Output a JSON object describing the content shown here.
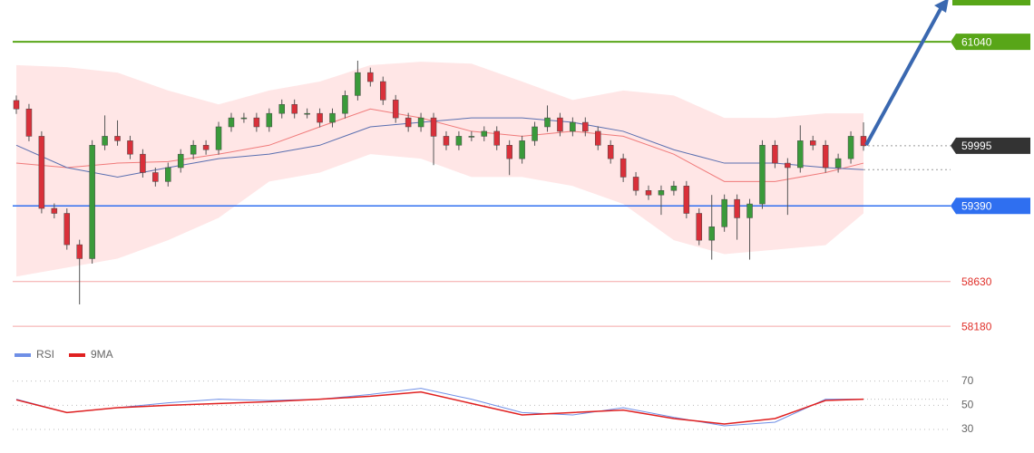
{
  "chart_data": [
    {
      "type": "candlestick",
      "open": [
        60450,
        60365,
        60090,
        59365,
        59315,
        59000,
        58860,
        60000,
        60090,
        60045,
        59910,
        59725,
        59635,
        59775,
        59910,
        60000,
        59955,
        60185,
        60275,
        60275,
        60185,
        60320,
        60410,
        60320,
        60320,
        60230,
        60320,
        60500,
        60730,
        60640,
        60455,
        60275,
        60185,
        60275,
        60090,
        60000,
        60090,
        60090,
        60140,
        60000,
        59865,
        60045,
        60185,
        60275,
        60140,
        60230,
        60140,
        60000,
        59865,
        59680,
        59545,
        59500,
        59545,
        59590,
        59315,
        59045,
        59180,
        59455,
        59270,
        59410,
        60000,
        59820,
        59775,
        60045,
        60000,
        59775,
        59865,
        60090
      ],
      "high": [
        60500,
        60415,
        60140,
        59415,
        59365,
        59050,
        60050,
        60300,
        60250,
        60095,
        59960,
        59775,
        59825,
        59960,
        60050,
        60050,
        60235,
        60325,
        60325,
        60325,
        60370,
        60460,
        60460,
        60370,
        60370,
        60370,
        60550,
        60850,
        60780,
        60690,
        60505,
        60325,
        60325,
        60325,
        60140,
        60140,
        60140,
        60190,
        60190,
        60050,
        60095,
        60235,
        60400,
        60325,
        60280,
        60280,
        60190,
        60050,
        59915,
        59730,
        59595,
        59595,
        59640,
        59640,
        59365,
        59500,
        59505,
        59505,
        59460,
        60050,
        60050,
        59870,
        60200,
        60095,
        60050,
        59915,
        60140,
        60230
      ],
      "low": [
        60315,
        60040,
        59315,
        59265,
        58950,
        58400,
        58810,
        59950,
        59995,
        59860,
        59675,
        59585,
        59585,
        59725,
        59860,
        59905,
        59905,
        60135,
        60225,
        60135,
        60135,
        60270,
        60270,
        60270,
        60180,
        60180,
        60270,
        60450,
        60590,
        60405,
        60225,
        60135,
        60135,
        59800,
        59950,
        59950,
        60040,
        60040,
        59950,
        59700,
        59815,
        59995,
        60135,
        60090,
        60090,
        60090,
        59950,
        59815,
        59630,
        59495,
        59450,
        59300,
        59495,
        59265,
        58995,
        58850,
        59130,
        59050,
        58850,
        59360,
        59770,
        59300,
        59725,
        59950,
        59725,
        59725,
        59815,
        59945
      ],
      "close": [
        60365,
        60090,
        59365,
        59315,
        59000,
        58860,
        60000,
        60090,
        60045,
        59910,
        59725,
        59635,
        59775,
        59910,
        60000,
        59955,
        60185,
        60275,
        60275,
        60185,
        60320,
        60410,
        60320,
        60320,
        60230,
        60320,
        60500,
        60730,
        60640,
        60455,
        60275,
        60185,
        60275,
        60090,
        60000,
        60090,
        60090,
        60140,
        60000,
        59865,
        60045,
        60185,
        60275,
        60140,
        60230,
        60140,
        60000,
        59865,
        59680,
        59545,
        59500,
        59545,
        59590,
        59315,
        59045,
        59180,
        59455,
        59270,
        59410,
        60000,
        59820,
        59775,
        60045,
        60000,
        59775,
        59865,
        60090,
        59995
      ],
      "up_color": "#3a9a3a",
      "down_color": "#d9303a",
      "ylim": [
        58090,
        61460
      ],
      "overlays": {
        "x": [
          0,
          4,
          8,
          12,
          16,
          20,
          24,
          28,
          32,
          36,
          40,
          44,
          48,
          52,
          56,
          60,
          64,
          67
        ],
        "band_upper": [
          60805,
          60785,
          60730,
          60550,
          60410,
          60550,
          60640,
          60805,
          60840,
          60820,
          60640,
          60455,
          60550,
          60500,
          60275,
          60275,
          60320,
          60320
        ],
        "band_lower": [
          58680,
          58770,
          58860,
          59045,
          59270,
          59635,
          59725,
          59910,
          59865,
          59680,
          59680,
          59590,
          59410,
          59045,
          58905,
          58950,
          58995,
          59315
        ],
        "band_color": "#ffd6d6",
        "series": [
          {
            "color": "#f07a7a",
            "values": [
              59820,
              59775,
              59820,
              59835,
              59910,
              60000,
              60185,
              60365,
              60275,
              60140,
              60090,
              60140,
              60090,
              59910,
              59635,
              59635,
              59725,
              59820
            ]
          },
          {
            "color": "#5a6fb0",
            "values": [
              60000,
              59775,
              59680,
              59775,
              59865,
              59910,
              60000,
              60185,
              60230,
              60275,
              60275,
              60230,
              60140,
              59955,
              59820,
              59820,
              59775,
              59755
            ]
          }
        ]
      },
      "levels": [
        {
          "value": 61040,
          "color": "#58a618",
          "style": "box"
        },
        {
          "value": 59995,
          "color": "#333333",
          "style": "box"
        },
        {
          "value": 59390,
          "color": "#2f6ff0",
          "style": "box"
        },
        {
          "value": 58630,
          "color": "#f4a6a6",
          "style": "text"
        },
        {
          "value": 58180,
          "color": "#f4a6a6",
          "style": "text"
        }
      ]
    },
    {
      "type": "line",
      "x": [
        0,
        4,
        8,
        12,
        16,
        20,
        24,
        28,
        32,
        36,
        40,
        44,
        48,
        52,
        56,
        60,
        64,
        67
      ],
      "series": [
        {
          "name": "RSI",
          "color": "#6f8fe6",
          "values": [
            55,
            44,
            48,
            52,
            55,
            54,
            55,
            59,
            64,
            55,
            44,
            42,
            48,
            40,
            33,
            36,
            55,
            55
          ]
        },
        {
          "name": "9MA",
          "color": "#e02020",
          "values": [
            54.5,
            44,
            48,
            50,
            51.5,
            53,
            55,
            57.5,
            61,
            51.5,
            42,
            44,
            46,
            39,
            34.5,
            39,
            54,
            55
          ]
        }
      ],
      "ylim": [
        18,
        78
      ],
      "yticks": [
        30,
        50,
        70
      ],
      "grid": true
    }
  ]
}
